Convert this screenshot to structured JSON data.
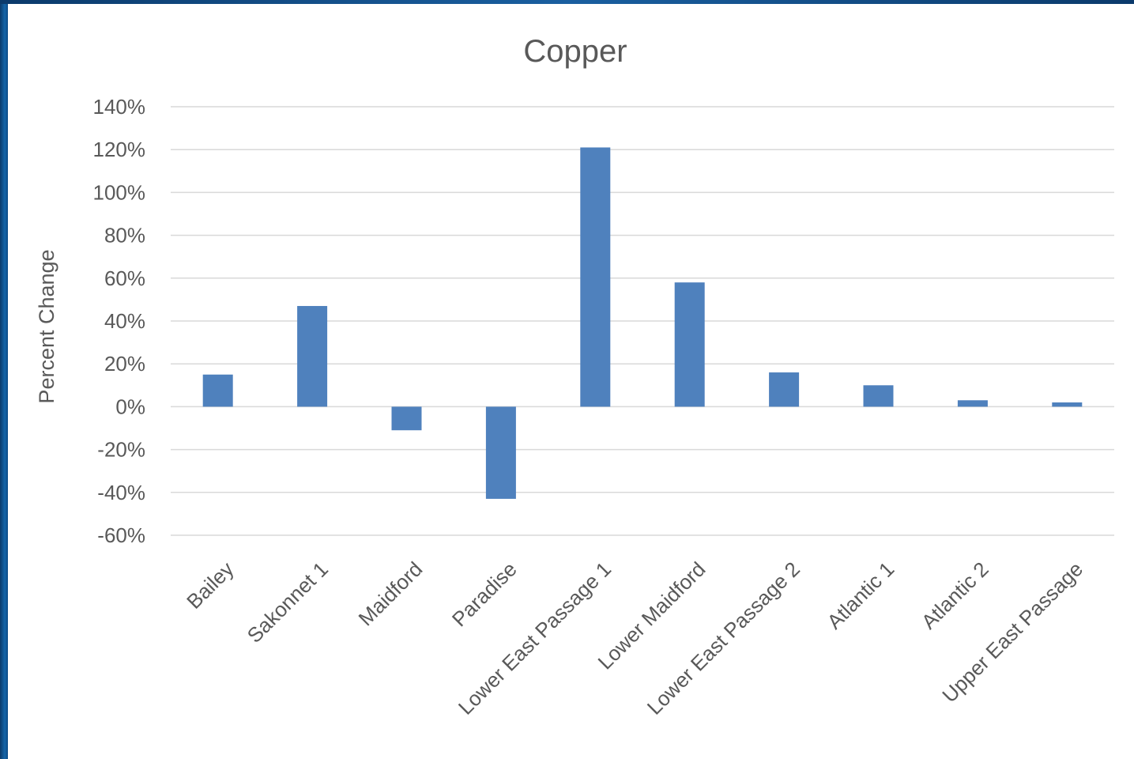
{
  "chart_data": {
    "type": "bar",
    "title": "Copper",
    "xlabel": "",
    "ylabel": "Percent Change",
    "ylim": [
      -60,
      140
    ],
    "yticks": [
      140,
      120,
      100,
      80,
      60,
      40,
      20,
      0,
      -20,
      -40,
      -60
    ],
    "ytick_labels": [
      "140%",
      "120%",
      "100%",
      "80%",
      "60%",
      "40%",
      "20%",
      "0%",
      "-20%",
      "-40%",
      "-60%"
    ],
    "categories": [
      "Bailey",
      "Sakonnet 1",
      "Maidford",
      "Paradise",
      "Lower East Passage 1",
      "Lower Maidford",
      "Lower East Passage 2",
      "Atlantic 1",
      "Atlantic 2",
      "Upper East Passage"
    ],
    "values": [
      15,
      47,
      -11,
      -43,
      121,
      58,
      16,
      10,
      3,
      2
    ],
    "grid": true,
    "legend": "none",
    "colors": {
      "bar": "#4f81bd",
      "grid": "#d9d9d9",
      "text": "#595959"
    }
  }
}
